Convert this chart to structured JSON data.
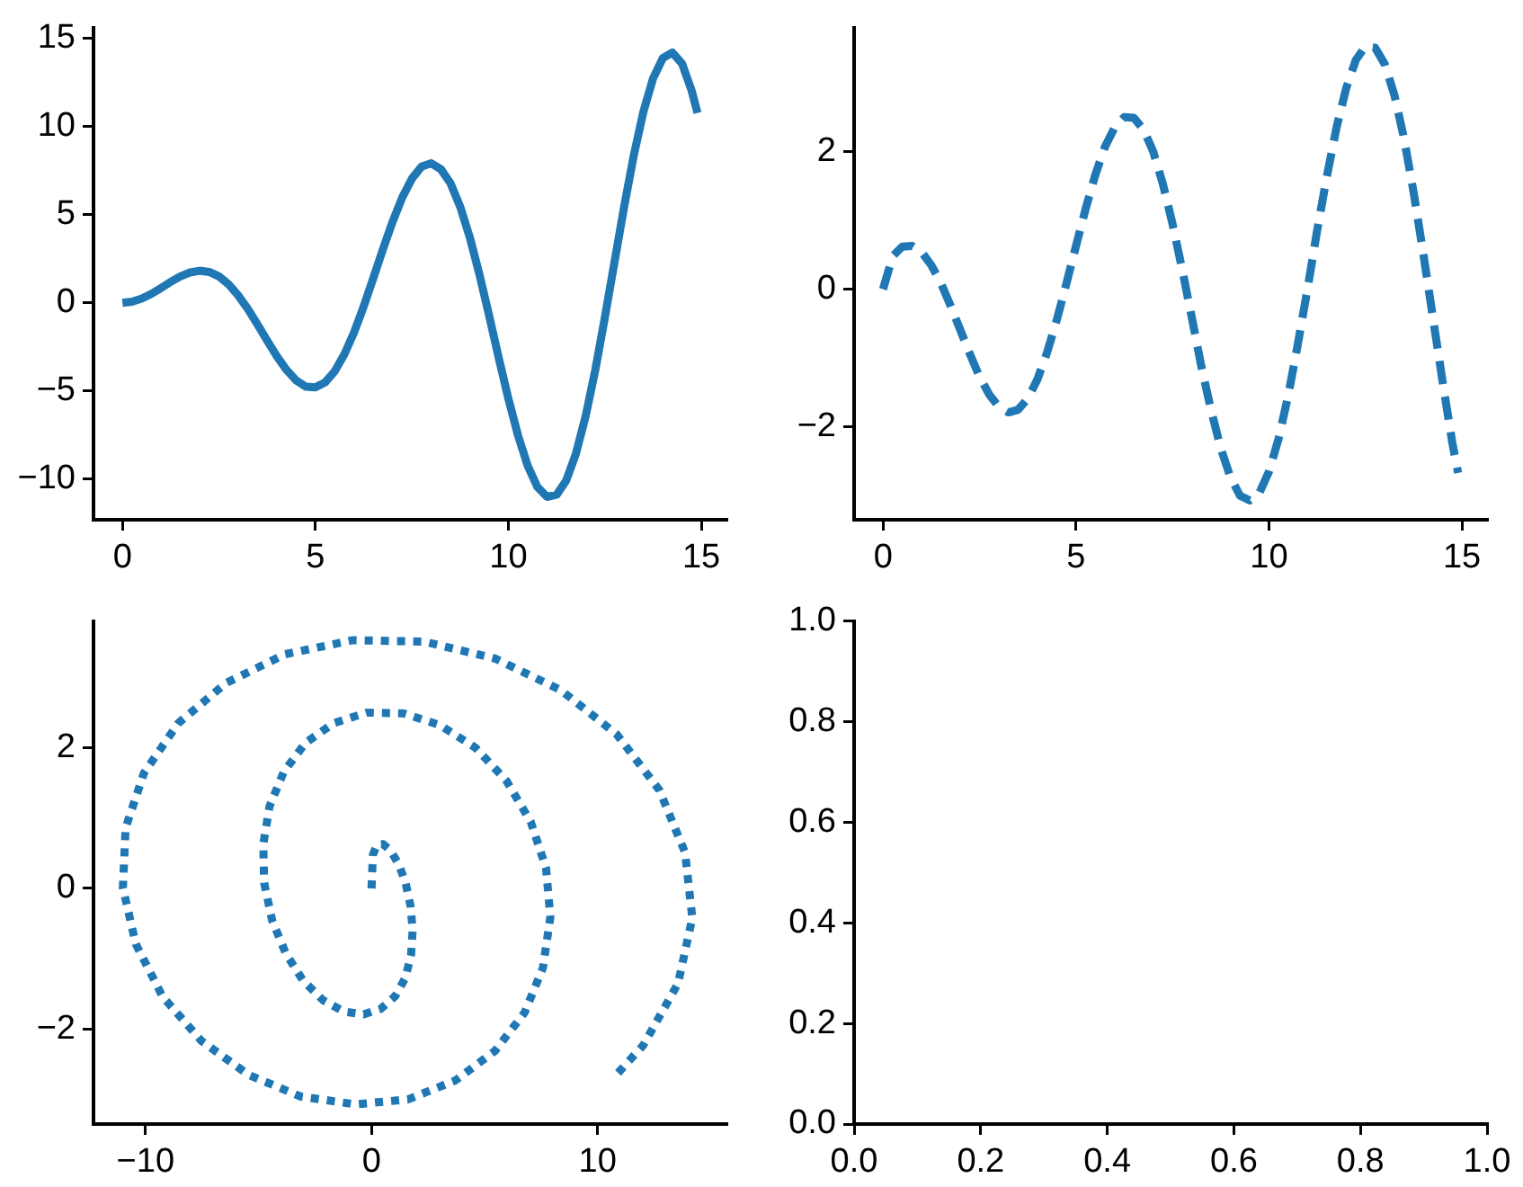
{
  "chart_data": [
    {
      "type": "line",
      "line_style": "solid",
      "xlim": [
        -0.75,
        15.65
      ],
      "xticks": [
        0,
        5,
        10,
        15
      ],
      "ylim": [
        -12.3,
        15.6
      ],
      "yticks": [
        -10,
        -5,
        0,
        5,
        10,
        15
      ],
      "grid": false,
      "legend": false,
      "x": [
        0,
        0.25,
        0.5,
        0.75,
        1,
        1.25,
        1.5,
        1.75,
        2,
        2.25,
        2.5,
        2.75,
        3,
        3.25,
        3.5,
        3.75,
        4,
        4.25,
        4.5,
        4.75,
        5,
        5.25,
        5.5,
        5.75,
        6,
        6.25,
        6.5,
        6.75,
        7,
        7.25,
        7.5,
        7.75,
        8,
        8.25,
        8.5,
        8.75,
        9,
        9.25,
        9.5,
        9.75,
        10,
        10.25,
        10.5,
        10.75,
        11,
        11.25,
        11.5,
        11.75,
        12,
        12.25,
        12.5,
        12.75,
        13,
        13.25,
        13.5,
        13.75,
        14,
        14.25,
        14.5,
        14.75,
        14.9
      ],
      "series": [
        {
          "color": "#1f77b4",
          "values": [
            0,
            0.06,
            0.24,
            0.51,
            0.84,
            1.19,
            1.5,
            1.72,
            1.82,
            1.75,
            1.5,
            1.05,
            0.42,
            -0.35,
            -1.23,
            -2.14,
            -3.03,
            -3.8,
            -4.4,
            -4.75,
            -4.79,
            -4.51,
            -3.88,
            -2.92,
            -1.68,
            -0.21,
            1.4,
            3.04,
            4.6,
            5.97,
            7.04,
            7.72,
            7.91,
            7.58,
            6.78,
            5.46,
            3.71,
            1.61,
            -0.71,
            -3.12,
            -5.44,
            -7.52,
            -9.24,
            -10.43,
            -11,
            -10.88,
            -10.07,
            -8.55,
            -6.44,
            -3.83,
            -0.83,
            2.32,
            5.46,
            8.37,
            10.85,
            12.73,
            13.87,
            14.19,
            13.56,
            12.02,
            10.77
          ]
        }
      ]
    },
    {
      "type": "line",
      "line_style": "dashed",
      "xlim": [
        -0.75,
        15.65
      ],
      "xticks": [
        0,
        5,
        10,
        15
      ],
      "ylim": [
        -3.35,
        3.8
      ],
      "yticks": [
        -2,
        0,
        2
      ],
      "grid": false,
      "legend": false,
      "x": [
        0,
        0.25,
        0.5,
        0.75,
        1,
        1.25,
        1.5,
        1.75,
        2,
        2.25,
        2.5,
        2.75,
        3,
        3.25,
        3.5,
        3.75,
        4,
        4.25,
        4.5,
        4.75,
        5,
        5.25,
        5.5,
        5.75,
        6,
        6.25,
        6.5,
        6.75,
        7,
        7.25,
        7.5,
        7.75,
        8,
        8.25,
        8.5,
        8.75,
        9,
        9.25,
        9.5,
        9.75,
        10,
        10.25,
        10.5,
        10.75,
        11,
        11.25,
        11.5,
        11.75,
        12,
        12.25,
        12.5,
        12.75,
        13,
        13.25,
        13.5,
        13.75,
        14,
        14.25,
        14.5,
        14.75,
        14.9
      ],
      "series": [
        {
          "color": "#1f77b4",
          "values": [
            0,
            0.48,
            0.62,
            0.63,
            0.54,
            0.35,
            0.09,
            -0.24,
            -0.59,
            -0.94,
            -1.27,
            -1.53,
            -1.71,
            -1.79,
            -1.75,
            -1.59,
            -1.31,
            -0.92,
            -0.45,
            0.08,
            0.63,
            1.17,
            1.66,
            2.07,
            2.35,
            2.5,
            2.49,
            2.32,
            2,
            1.53,
            0.95,
            0.29,
            -0.41,
            -1.13,
            -1.76,
            -2.31,
            -2.73,
            -3,
            -3.07,
            -2.96,
            -2.65,
            -2.17,
            -1.54,
            -0.79,
            0.01,
            0.86,
            1.64,
            2.35,
            2.92,
            3.33,
            3.53,
            3.51,
            3.27,
            2.82,
            2.19,
            1.4,
            0.51,
            -0.42,
            -1.35,
            -2.23,
            -2.67
          ]
        }
      ]
    },
    {
      "type": "line",
      "line_style": "dotted",
      "xlim": [
        -12.3,
        15.7
      ],
      "xticks": [
        -10,
        0,
        10
      ],
      "ylim": [
        -3.35,
        3.8
      ],
      "yticks": [
        -2,
        0,
        2
      ],
      "grid": false,
      "legend": false,
      "series": [
        {
          "color": "#1f77b4",
          "x": [
            0,
            0.06,
            0.24,
            0.51,
            0.84,
            1.19,
            1.5,
            1.72,
            1.82,
            1.75,
            1.5,
            1.05,
            0.42,
            -0.35,
            -1.23,
            -2.14,
            -3.03,
            -3.8,
            -4.4,
            -4.75,
            -4.79,
            -4.51,
            -3.88,
            -2.92,
            -1.68,
            -0.21,
            1.4,
            3.04,
            4.6,
            5.97,
            7.04,
            7.72,
            7.91,
            7.58,
            6.78,
            5.46,
            3.71,
            1.61,
            -0.71,
            -3.12,
            -5.44,
            -7.52,
            -9.24,
            -10.43,
            -11,
            -10.88,
            -10.07,
            -8.55,
            -6.44,
            -3.83,
            -0.83,
            2.32,
            5.46,
            8.37,
            10.85,
            12.73,
            13.87,
            14.19,
            13.56,
            12.02,
            10.77
          ],
          "values": [
            0,
            0.48,
            0.62,
            0.63,
            0.54,
            0.35,
            0.09,
            -0.24,
            -0.59,
            -0.94,
            -1.27,
            -1.53,
            -1.71,
            -1.79,
            -1.75,
            -1.59,
            -1.31,
            -0.92,
            -0.45,
            0.08,
            0.63,
            1.17,
            1.66,
            2.07,
            2.35,
            2.5,
            2.49,
            2.32,
            2,
            1.53,
            0.95,
            0.29,
            -0.41,
            -1.13,
            -1.76,
            -2.31,
            -2.73,
            -3,
            -3.07,
            -2.96,
            -2.65,
            -2.17,
            -1.54,
            -0.79,
            0.01,
            0.86,
            1.64,
            2.35,
            2.92,
            3.33,
            3.53,
            3.51,
            3.27,
            2.82,
            2.19,
            1.4,
            0.51,
            -0.42,
            -1.35,
            -2.23,
            -2.67
          ]
        }
      ]
    },
    {
      "type": "line",
      "xlim": [
        0,
        1
      ],
      "xticks": [
        {
          "value": 0,
          "label": "0.0"
        },
        {
          "value": 0.2,
          "label": "0.2"
        },
        {
          "value": 0.4,
          "label": "0.4"
        },
        {
          "value": 0.6,
          "label": "0.6"
        },
        {
          "value": 0.8,
          "label": "0.8"
        },
        {
          "value": 1,
          "label": "1.0"
        }
      ],
      "ylim": [
        0,
        1
      ],
      "yticks": [
        {
          "value": 0,
          "label": "0.0"
        },
        {
          "value": 0.2,
          "label": "0.2"
        },
        {
          "value": 0.4,
          "label": "0.4"
        },
        {
          "value": 0.6,
          "label": "0.6"
        },
        {
          "value": 0.8,
          "label": "0.8"
        },
        {
          "value": 1,
          "label": "1.0"
        }
      ],
      "grid": false,
      "legend": false
    }
  ]
}
